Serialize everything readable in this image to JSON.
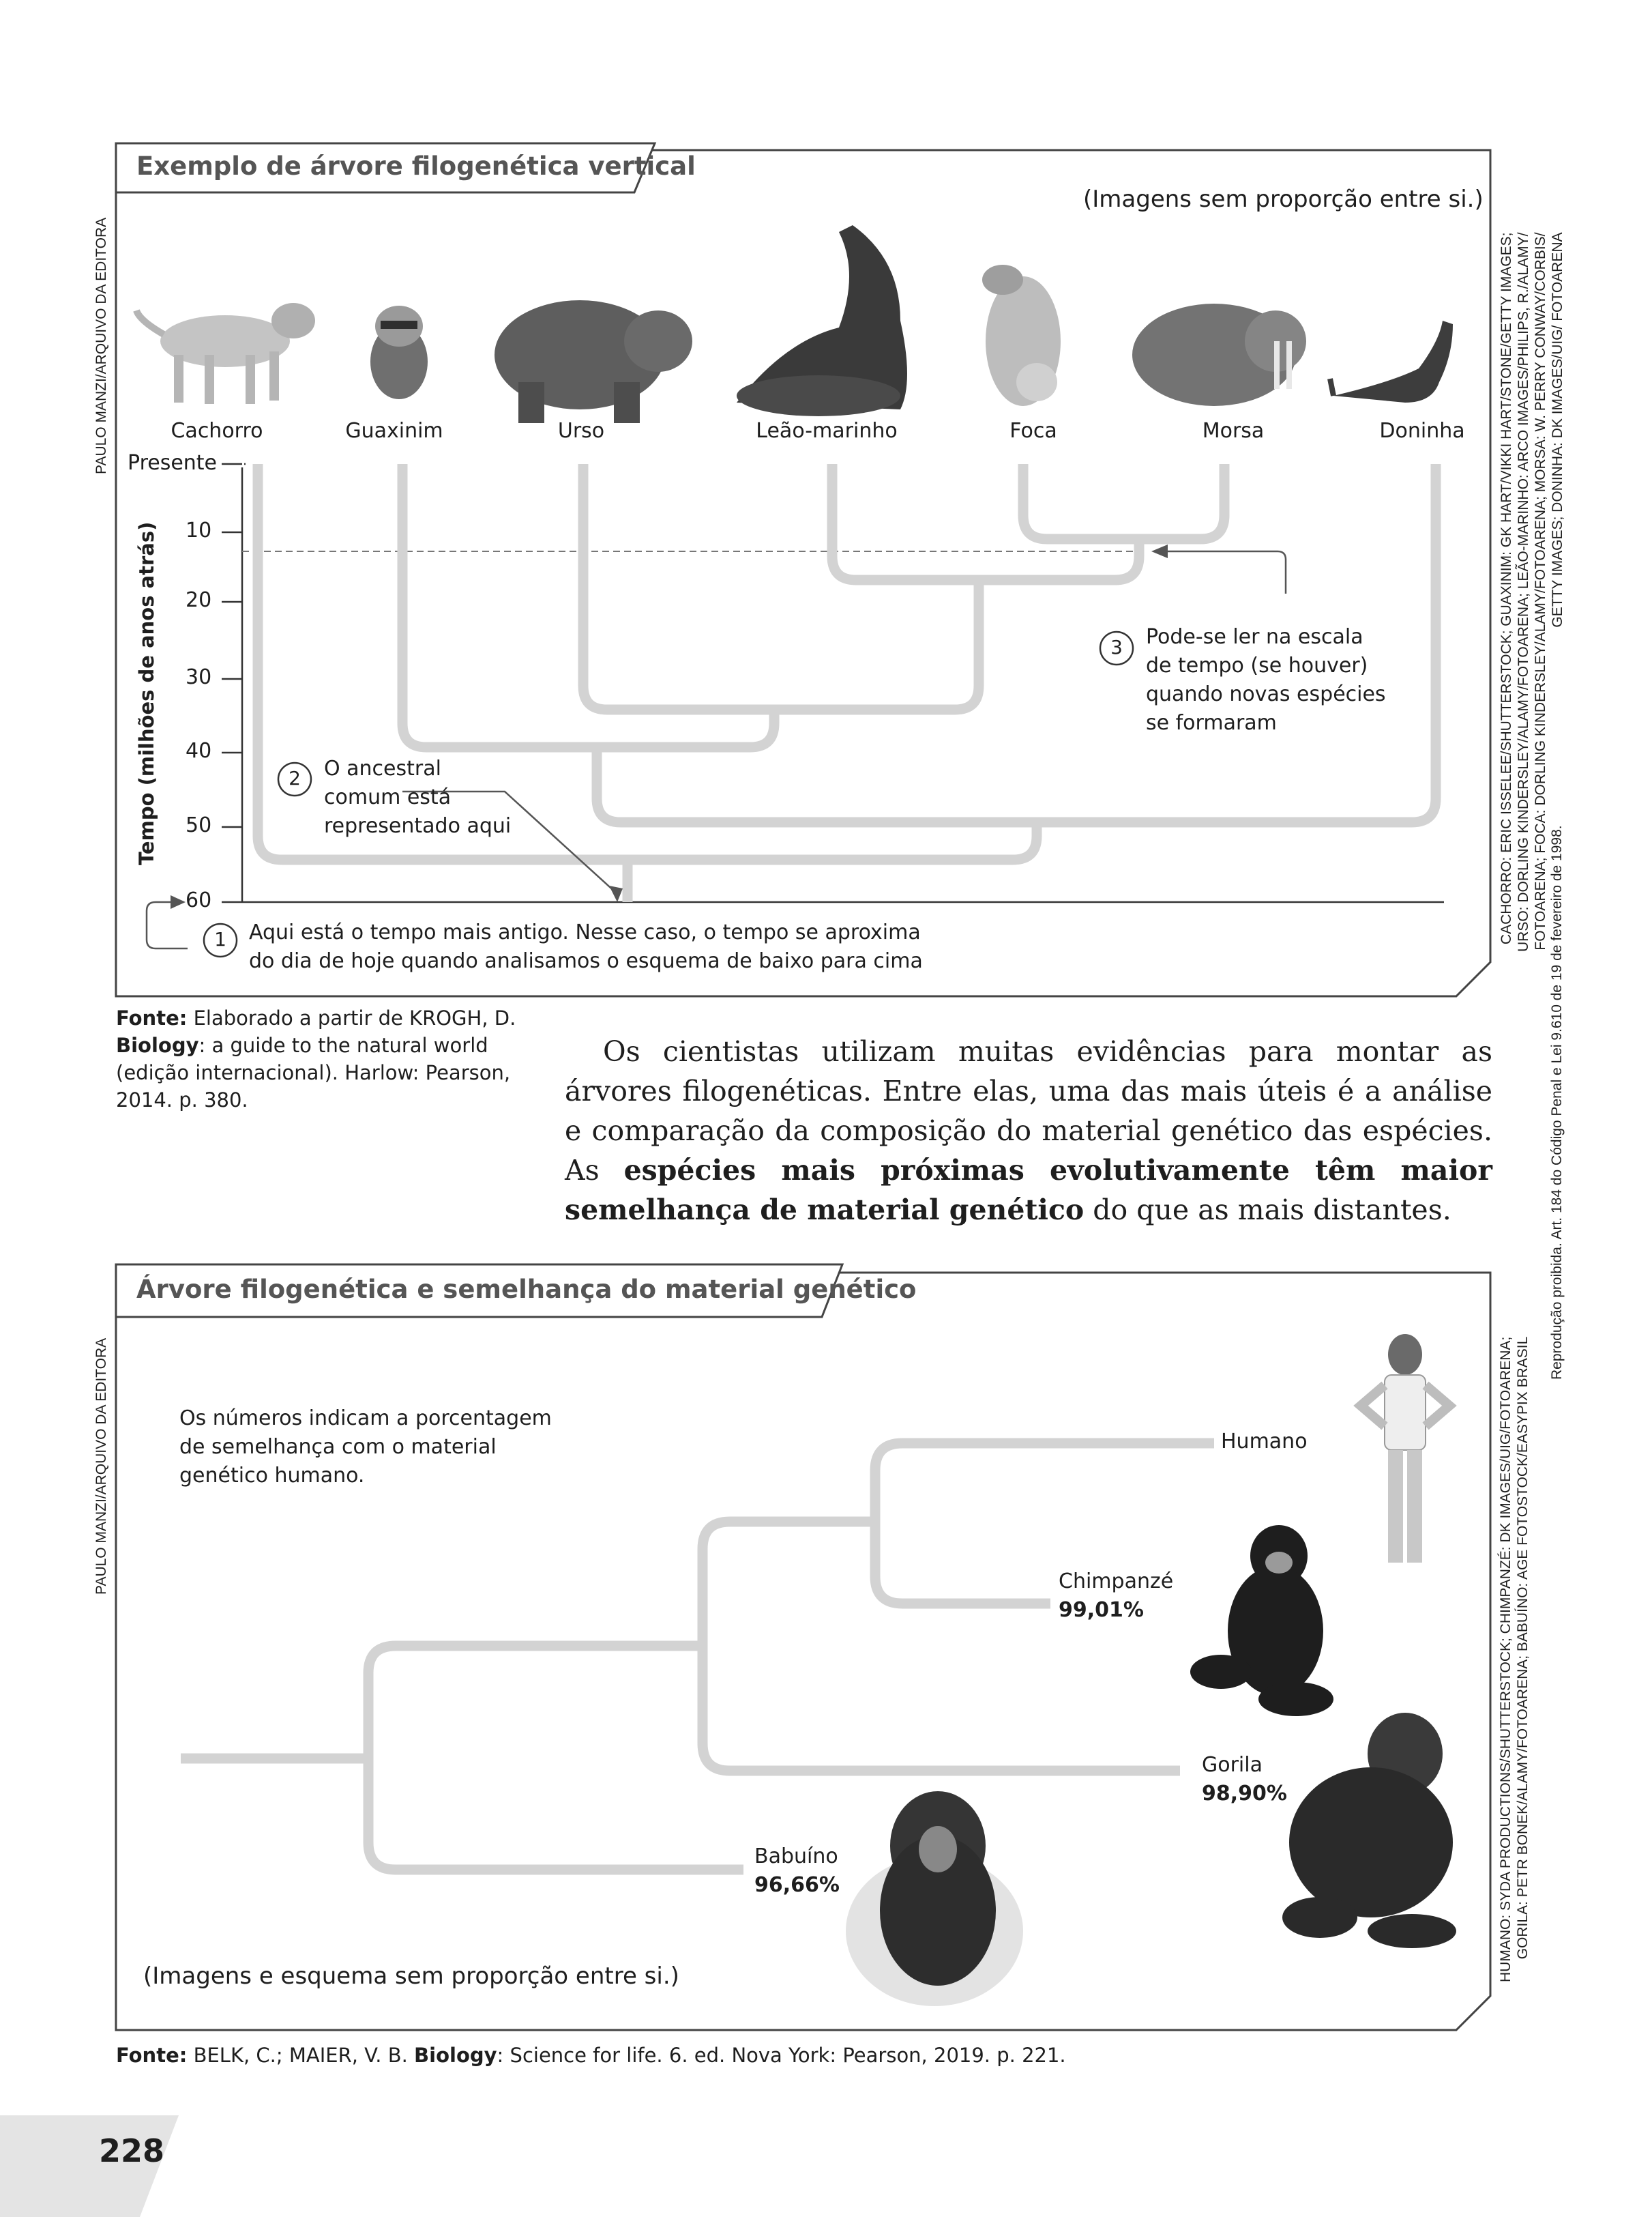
{
  "credit_left": "PAULO MANZI/ARQUIVO DA EDITORA",
  "figure1": {
    "title": "Exemplo de árvore filogenética vertical",
    "note": "(Imagens sem proporção entre si.)",
    "species": [
      "Cachorro",
      "Guaxinim",
      "Urso",
      "Leão-marinho",
      "Foca",
      "Morsa",
      "Doninha"
    ],
    "axis_label": "Tempo (milhões de anos atrás)",
    "ticks": [
      "Presente",
      "10",
      "20",
      "30",
      "40",
      "50",
      "60"
    ],
    "callout1_number": "1",
    "callout1_lines": [
      "Aqui está o tempo mais antigo. Nesse caso, o tempo se aproxima",
      "do dia de hoje quando analisamos o esquema de baixo para cima"
    ],
    "callout2_number": "2",
    "callout2_lines": [
      "O ancestral",
      "comum está",
      "representado aqui"
    ],
    "callout3_number": "3",
    "callout3_lines": [
      "Pode-se ler na escala",
      "de tempo (se houver)",
      "quando novas espécies",
      "se formaram"
    ],
    "photo_credits": [
      "CACHORRO: ERIC ISSELEE/SHUTTERSTOCK; GUAXINIM: GK HART/VIKKI HART/STONE/GETTY IMAGES;",
      "URSO: DORLING KINDERSLEY/ALAMY/FOTOARENA; LEÃO-MARINHO: ARCO IMAGES/PHILIPS, R./ALAMY/",
      "FOTOARENA; FOCA: DORLING KINDERSLEY/ALAMY/FOTOARENA; MORSA: W. PERRY CONWAY/CORBIS/",
      "GETTY IMAGES; DONINHA: DK IMAGES/UIG/ FOTOARENA"
    ],
    "source_label": "Fonte:",
    "source_text_1": "Elaborado a partir de KROGH, D.",
    "source_bold": "Biology",
    "source_text_2": ": a guide to the natural world",
    "source_text_3": "(edição internacional). Harlow: Pearson,",
    "source_text_4": "2014. p. 380."
  },
  "body": {
    "part1": "Os cientistas utilizam muitas evidências para montar as árvores filogenéticas. Entre elas, uma das mais úteis é a análise e comparação da composição do material genético das espécies. As ",
    "bold": "espécies mais próximas evolutivamente têm maior semelhança de material genético",
    "part2": " do que as mais distantes."
  },
  "legal": "Reprodução proibida. Art. 184 do Código Penal e Lei 9.610 de 19 de fevereiro de 1998.",
  "figure2": {
    "title": "Árvore filogenética e semelhança do material genético",
    "explanation_lines": [
      "Os números indicam a porcentagem",
      "de semelhança com o material",
      "genético humano."
    ],
    "taxa": [
      {
        "name": "Humano",
        "value": ""
      },
      {
        "name": "Chimpanzé",
        "value": "99,01%"
      },
      {
        "name": "Gorila",
        "value": "98,90%"
      },
      {
        "name": "Babuíno",
        "value": "96,66%"
      }
    ],
    "note": "(Imagens e esquema sem proporção entre si.)",
    "photo_credits": [
      "HUMANO: SYDA PRODUCTIONS/SHUTTERSTOCK; CHIMPANZÉ: DK IMAGES/UIG/FOTOARENA;",
      "GORILA: PETR BONEK/ALAMY/FOTOARENA; BABUÍNO: AGE FOTOSTOCK/EASYPIX BRASIL"
    ],
    "source_label": "Fonte:",
    "source_text_1": "BELK, C.; MAIER, V. B. ",
    "source_bold": "Biology",
    "source_text_2": ": Science for life. 6. ed. Nova York: Pearson, 2019. p. 221."
  },
  "page_number": "228"
}
